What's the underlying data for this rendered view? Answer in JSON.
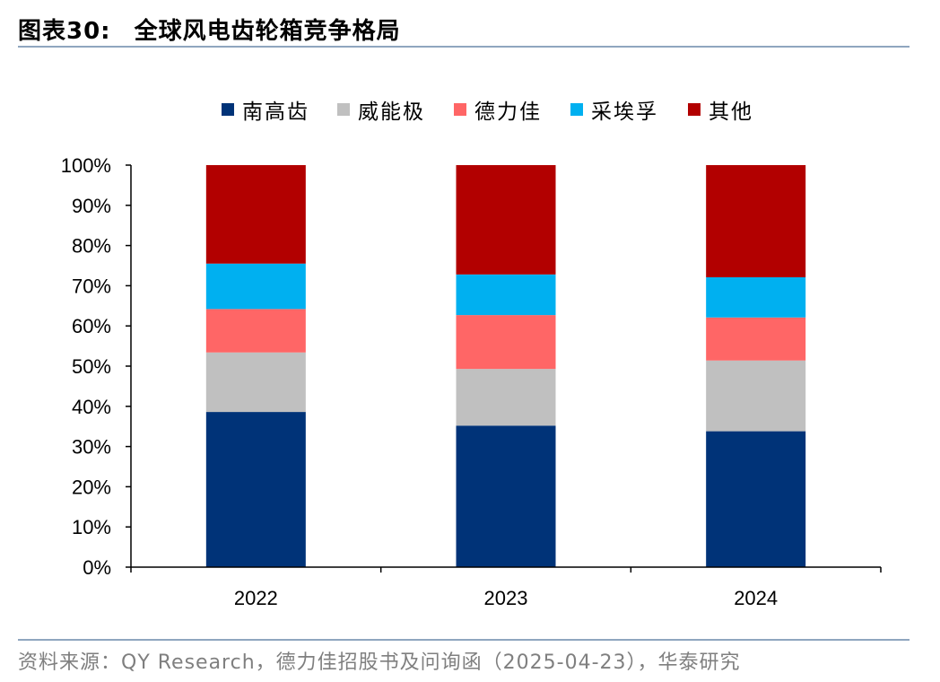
{
  "header": {
    "figure_no": "图表30:",
    "title": "全球风电齿轮箱竞争格局"
  },
  "footer": {
    "source": "资料来源：QY Research，德力佳招股书及问询函（2025-04-23），华泰研究"
  },
  "chart_data": {
    "type": "bar",
    "stacked": true,
    "categories": [
      "2022",
      "2023",
      "2024"
    ],
    "series": [
      {
        "name": "南高齿",
        "color": "#003378",
        "values": [
          38.6,
          35.2,
          33.8
        ]
      },
      {
        "name": "威能极",
        "color": "#c0c0c0",
        "values": [
          14.8,
          14.1,
          17.6
        ]
      },
      {
        "name": "德力佳",
        "color": "#ff6666",
        "values": [
          10.8,
          13.4,
          10.7
        ]
      },
      {
        "name": "采埃孚",
        "color": "#00b0f0",
        "values": [
          11.3,
          10.1,
          10.0
        ]
      },
      {
        "name": "其他",
        "color": "#b20000",
        "values": [
          24.5,
          27.2,
          27.9
        ]
      }
    ],
    "ylim": [
      0,
      100
    ],
    "yticks": [
      "0%",
      "10%",
      "20%",
      "30%",
      "40%",
      "50%",
      "60%",
      "70%",
      "80%",
      "90%",
      "100%"
    ],
    "legend_position": "top-center",
    "grid": false
  }
}
